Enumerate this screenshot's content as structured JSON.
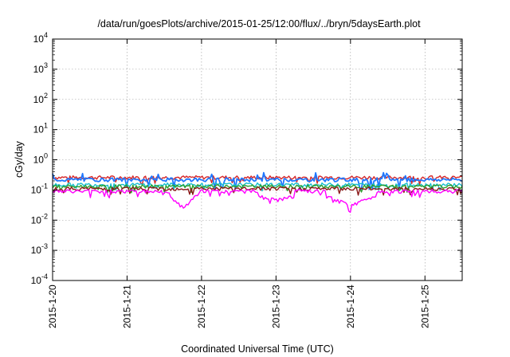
{
  "chart_data": {
    "type": "line",
    "title": "/data/run/goesPlots/archive/2015-01-25/12:00/flux/../bryn/5daysEarth.plot",
    "xlabel": "Coordinated Universal Time (UTC)",
    "ylabel": "cGy/day",
    "y_scale": "log",
    "ylim": [
      0.0001,
      10000
    ],
    "xlim": [
      "2015-01-20",
      "2015-01-25 12:00"
    ],
    "x_ticks": [
      "2015-1-20",
      "2015-1-21",
      "2015-1-22",
      "2015-1-23",
      "2015-1-24",
      "2015-1-25"
    ],
    "y_ticks": [
      {
        "value": 0.0001,
        "base": "10",
        "exp": "-4"
      },
      {
        "value": 0.001,
        "base": "10",
        "exp": "-3"
      },
      {
        "value": 0.01,
        "base": "10",
        "exp": "-2"
      },
      {
        "value": 0.1,
        "base": "10",
        "exp": "-1"
      },
      {
        "value": 1,
        "base": "10",
        "exp": "0"
      },
      {
        "value": 10,
        "base": "10",
        "exp": "1"
      },
      {
        "value": 100,
        "base": "10",
        "exp": "2"
      },
      {
        "value": 1000,
        "base": "10",
        "exp": "3"
      },
      {
        "value": 10000,
        "base": "10",
        "exp": "4"
      }
    ],
    "grid": true,
    "legend": "none",
    "series": [
      {
        "color": "#d62728",
        "values": [
          {
            "x": "2015-01-20 00:00",
            "y": 0.26
          },
          {
            "x": "2015-01-20 12:00",
            "y": 0.27
          },
          {
            "x": "2015-01-21 00:00",
            "y": 0.26
          },
          {
            "x": "2015-01-21 12:00",
            "y": 0.27
          },
          {
            "x": "2015-01-22 00:00",
            "y": 0.26
          },
          {
            "x": "2015-01-22 12:00",
            "y": 0.26
          },
          {
            "x": "2015-01-23 00:00",
            "y": 0.25
          },
          {
            "x": "2015-01-23 12:00",
            "y": 0.26
          },
          {
            "x": "2015-01-24 00:00",
            "y": 0.26
          },
          {
            "x": "2015-01-24 12:00",
            "y": 0.25
          },
          {
            "x": "2015-01-25 00:00",
            "y": 0.26
          },
          {
            "x": "2015-01-25 12:00",
            "y": 0.26
          }
        ]
      },
      {
        "color": "#1f77ff",
        "values": [
          {
            "x": "2015-01-20 00:00",
            "y": 0.22
          },
          {
            "x": "2015-01-20 12:00",
            "y": 0.23
          },
          {
            "x": "2015-01-21 00:00",
            "y": 0.22
          },
          {
            "x": "2015-01-21 12:00",
            "y": 0.22
          },
          {
            "x": "2015-01-22 00:00",
            "y": 0.22
          },
          {
            "x": "2015-01-22 12:00",
            "y": 0.22
          },
          {
            "x": "2015-01-23 00:00",
            "y": 0.21
          },
          {
            "x": "2015-01-23 12:00",
            "y": 0.22
          },
          {
            "x": "2015-01-24 00:00",
            "y": 0.22
          },
          {
            "x": "2015-01-24 12:00",
            "y": 0.21
          },
          {
            "x": "2015-01-25 00:00",
            "y": 0.22
          },
          {
            "x": "2015-01-25 12:00",
            "y": 0.22
          }
        ]
      },
      {
        "color": "#17becf",
        "values": [
          {
            "x": "2015-01-20 00:00",
            "y": 0.15
          },
          {
            "x": "2015-01-20 12:00",
            "y": 0.15
          },
          {
            "x": "2015-01-21 00:00",
            "y": 0.15
          },
          {
            "x": "2015-01-21 12:00",
            "y": 0.15
          },
          {
            "x": "2015-01-22 00:00",
            "y": 0.15
          },
          {
            "x": "2015-01-22 12:00",
            "y": 0.15
          },
          {
            "x": "2015-01-23 00:00",
            "y": 0.14
          },
          {
            "x": "2015-01-23 12:00",
            "y": 0.15
          },
          {
            "x": "2015-01-24 00:00",
            "y": 0.15
          },
          {
            "x": "2015-01-24 12:00",
            "y": 0.14
          },
          {
            "x": "2015-01-25 00:00",
            "y": 0.15
          },
          {
            "x": "2015-01-25 12:00",
            "y": 0.15
          }
        ]
      },
      {
        "color": "#2ca02c",
        "values": [
          {
            "x": "2015-01-20 00:00",
            "y": 0.13
          },
          {
            "x": "2015-01-20 12:00",
            "y": 0.13
          },
          {
            "x": "2015-01-21 00:00",
            "y": 0.13
          },
          {
            "x": "2015-01-21 12:00",
            "y": 0.13
          },
          {
            "x": "2015-01-22 00:00",
            "y": 0.13
          },
          {
            "x": "2015-01-22 12:00",
            "y": 0.13
          },
          {
            "x": "2015-01-23 00:00",
            "y": 0.12
          },
          {
            "x": "2015-01-23 12:00",
            "y": 0.13
          },
          {
            "x": "2015-01-24 00:00",
            "y": 0.13
          },
          {
            "x": "2015-01-24 12:00",
            "y": 0.12
          },
          {
            "x": "2015-01-25 00:00",
            "y": 0.13
          },
          {
            "x": "2015-01-25 12:00",
            "y": 0.13
          }
        ]
      },
      {
        "color": "#8b1a1a",
        "values": [
          {
            "x": "2015-01-20 00:00",
            "y": 0.11
          },
          {
            "x": "2015-01-20 12:00",
            "y": 0.11
          },
          {
            "x": "2015-01-21 00:00",
            "y": 0.11
          },
          {
            "x": "2015-01-21 12:00",
            "y": 0.11
          },
          {
            "x": "2015-01-22 00:00",
            "y": 0.11
          },
          {
            "x": "2015-01-22 12:00",
            "y": 0.11
          },
          {
            "x": "2015-01-23 00:00",
            "y": 0.105
          },
          {
            "x": "2015-01-23 12:00",
            "y": 0.11
          },
          {
            "x": "2015-01-24 00:00",
            "y": 0.11
          },
          {
            "x": "2015-01-24 12:00",
            "y": 0.105
          },
          {
            "x": "2015-01-25 00:00",
            "y": 0.11
          },
          {
            "x": "2015-01-25 12:00",
            "y": 0.11
          }
        ]
      },
      {
        "color": "#ff00ff",
        "values": [
          {
            "x": "2015-01-20 00:00",
            "y": 0.09
          },
          {
            "x": "2015-01-20 12:00",
            "y": 0.09
          },
          {
            "x": "2015-01-21 00:00",
            "y": 0.09
          },
          {
            "x": "2015-01-21 12:00",
            "y": 0.09
          },
          {
            "x": "2015-01-21 18:00",
            "y": 0.025
          },
          {
            "x": "2015-01-22 00:00",
            "y": 0.09
          },
          {
            "x": "2015-01-22 12:00",
            "y": 0.09
          },
          {
            "x": "2015-01-23 00:00",
            "y": 0.045
          },
          {
            "x": "2015-01-23 12:00",
            "y": 0.09
          },
          {
            "x": "2015-01-24 00:00",
            "y": 0.03
          },
          {
            "x": "2015-01-24 12:00",
            "y": 0.09
          },
          {
            "x": "2015-01-25 00:00",
            "y": 0.09
          },
          {
            "x": "2015-01-25 12:00",
            "y": 0.09
          }
        ]
      }
    ]
  }
}
